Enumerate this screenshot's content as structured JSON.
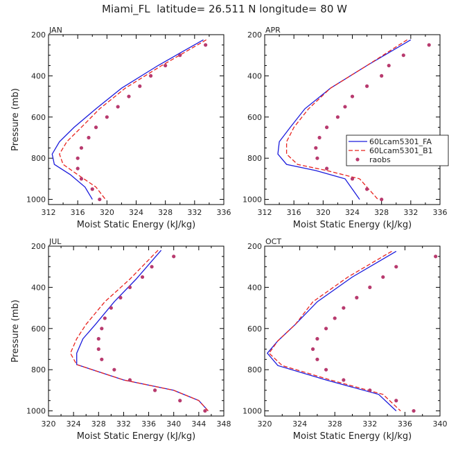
{
  "title": "Miami_FL  latitude= 26.511 N longitude= 80 W",
  "colors": {
    "model_fa": "#1a1adc",
    "model_b": "#e8231e",
    "raobs": "#b83a6e"
  },
  "legend": {
    "entries": [
      "60Lcam5301_FA",
      "60Lcam5301_B1",
      "raobs"
    ]
  },
  "chart_data": [
    {
      "type": "line",
      "panel": "JAN",
      "xlabel": "Moist Static Energy (kJ/kg)",
      "ylabel": "Pressure (mb)",
      "xlim": [
        312,
        336
      ],
      "ylim": [
        200,
        1025
      ],
      "xticks": [
        312,
        316,
        320,
        324,
        328,
        332,
        336
      ],
      "yticks": [
        200,
        400,
        600,
        800,
        1000
      ],
      "series": [
        {
          "name": "60Lcam5301_FA",
          "style": "solid",
          "points": [
            [
              333.2,
              225
            ],
            [
              327,
              350
            ],
            [
              322,
              460
            ],
            [
              318.5,
              560
            ],
            [
              315.5,
              650
            ],
            [
              313.5,
              720
            ],
            [
              312.5,
              780
            ],
            [
              312.8,
              830
            ],
            [
              315,
              880
            ],
            [
              317,
              940
            ],
            [
              318,
              1000
            ]
          ]
        },
        {
          "name": "60Lcam5301_B1",
          "style": "dashed",
          "points": [
            [
              333.6,
              225
            ],
            [
              327.5,
              350
            ],
            [
              322.5,
              460
            ],
            [
              319,
              560
            ],
            [
              316.5,
              650
            ],
            [
              314.5,
              720
            ],
            [
              313.5,
              780
            ],
            [
              314,
              830
            ],
            [
              316,
              880
            ],
            [
              318.5,
              940
            ],
            [
              319.8,
              1000
            ]
          ]
        },
        {
          "name": "raobs",
          "style": "dots",
          "points": [
            [
              333.5,
              250
            ],
            [
              330,
              300
            ],
            [
              328,
              350
            ],
            [
              326,
              400
            ],
            [
              324.5,
              450
            ],
            [
              323,
              500
            ],
            [
              321.5,
              550
            ],
            [
              320,
              600
            ],
            [
              318.5,
              650
            ],
            [
              317.5,
              700
            ],
            [
              316.5,
              750
            ],
            [
              316,
              800
            ],
            [
              316,
              850
            ],
            [
              316.5,
              900
            ],
            [
              318,
              950
            ],
            [
              319,
              1000
            ]
          ]
        }
      ]
    },
    {
      "type": "line",
      "panel": "APR",
      "xlabel": "Moist Static Energy (kJ/kg)",
      "ylabel": "",
      "xlim": [
        312,
        336
      ],
      "ylim": [
        200,
        1025
      ],
      "xticks": [
        312,
        316,
        320,
        324,
        328,
        332,
        336
      ],
      "yticks": [
        200,
        400,
        600,
        800,
        1000
      ],
      "legend_position": "right",
      "series": [
        {
          "name": "60Lcam5301_FA",
          "style": "solid",
          "points": [
            [
              332,
              225
            ],
            [
              326,
              350
            ],
            [
              321,
              460
            ],
            [
              317.5,
              560
            ],
            [
              315.5,
              650
            ],
            [
              314,
              720
            ],
            [
              313.8,
              780
            ],
            [
              315,
              830
            ],
            [
              319,
              860
            ],
            [
              323,
              900
            ],
            [
              325,
              1000
            ]
          ]
        },
        {
          "name": "60Lcam5301_B1",
          "style": "dashed",
          "points": [
            [
              331.5,
              225
            ],
            [
              326,
              350
            ],
            [
              321,
              460
            ],
            [
              318,
              560
            ],
            [
              316,
              650
            ],
            [
              315,
              720
            ],
            [
              315,
              780
            ],
            [
              316.5,
              830
            ],
            [
              320.5,
              860
            ],
            [
              325,
              900
            ],
            [
              327.5,
              1000
            ]
          ]
        },
        {
          "name": "raobs",
          "style": "dots",
          "points": [
            [
              334.5,
              250
            ],
            [
              331,
              300
            ],
            [
              329,
              350
            ],
            [
              328,
              400
            ],
            [
              326,
              450
            ],
            [
              324,
              500
            ],
            [
              323,
              550
            ],
            [
              322,
              600
            ],
            [
              320.5,
              650
            ],
            [
              319.5,
              700
            ],
            [
              319,
              750
            ],
            [
              319.2,
              800
            ],
            [
              320.5,
              850
            ],
            [
              324,
              900
            ],
            [
              326,
              950
            ],
            [
              328,
              1000
            ]
          ]
        }
      ]
    },
    {
      "type": "line",
      "panel": "JUL",
      "xlabel": "Moist Static Energy (kJ/kg)",
      "ylabel": "Pressure (mb)",
      "xlim": [
        320,
        348
      ],
      "ylim": [
        200,
        1025
      ],
      "xticks": [
        320,
        324,
        328,
        332,
        336,
        340,
        344,
        348
      ],
      "yticks": [
        200,
        400,
        600,
        800,
        1000
      ],
      "series": [
        {
          "name": "60Lcam5301_FA",
          "style": "solid",
          "points": [
            [
              338,
              220
            ],
            [
              334,
              360
            ],
            [
              330.5,
              470
            ],
            [
              327.5,
              580
            ],
            [
              325.5,
              650
            ],
            [
              324.5,
              720
            ],
            [
              324.5,
              775
            ],
            [
              332,
              850
            ],
            [
              340,
              900
            ],
            [
              344,
              950
            ],
            [
              345.5,
              1000
            ]
          ]
        },
        {
          "name": "60Lcam5301_B1",
          "style": "dashed",
          "points": [
            [
              337.5,
              220
            ],
            [
              333,
              360
            ],
            [
              329,
              470
            ],
            [
              326,
              580
            ],
            [
              324.5,
              650
            ],
            [
              323.5,
              720
            ],
            [
              324.5,
              775
            ],
            [
              332,
              850
            ],
            [
              340,
              900
            ],
            [
              344,
              950
            ],
            [
              345.5,
              1000
            ]
          ]
        },
        {
          "name": "raobs",
          "style": "dots",
          "points": [
            [
              340,
              250
            ],
            [
              336.5,
              300
            ],
            [
              335,
              350
            ],
            [
              333,
              400
            ],
            [
              331.5,
              450
            ],
            [
              330,
              500
            ],
            [
              329,
              550
            ],
            [
              328.5,
              600
            ],
            [
              328,
              650
            ],
            [
              328,
              700
            ],
            [
              328.5,
              750
            ],
            [
              330.5,
              800
            ],
            [
              333,
              850
            ],
            [
              337,
              900
            ],
            [
              341,
              950
            ],
            [
              345,
              1000
            ]
          ]
        }
      ]
    },
    {
      "type": "line",
      "panel": "OCT",
      "xlabel": "Moist Static Energy (kJ/kg)",
      "ylabel": "",
      "xlim": [
        320,
        340
      ],
      "ylim": [
        200,
        1025
      ],
      "xticks": [
        320,
        324,
        328,
        332,
        336,
        340
      ],
      "yticks": [
        200,
        400,
        600,
        800,
        1000
      ],
      "series": [
        {
          "name": "60Lcam5301_FA",
          "style": "solid",
          "points": [
            [
              335,
              225
            ],
            [
              330,
              350
            ],
            [
              326,
              470
            ],
            [
              323.5,
              580
            ],
            [
              321.5,
              660
            ],
            [
              320.3,
              720
            ],
            [
              321.5,
              780
            ],
            [
              327,
              850
            ],
            [
              333,
              920
            ],
            [
              335,
              1000
            ]
          ]
        },
        {
          "name": "60Lcam5301_B1",
          "style": "dashed",
          "points": [
            [
              334.5,
              225
            ],
            [
              329.5,
              350
            ],
            [
              325.5,
              470
            ],
            [
              323.5,
              580
            ],
            [
              321.5,
              660
            ],
            [
              320.5,
              720
            ],
            [
              322,
              780
            ],
            [
              327.5,
              850
            ],
            [
              333.5,
              920
            ],
            [
              335.5,
              1000
            ]
          ]
        },
        {
          "name": "raobs",
          "style": "dots",
          "points": [
            [
              339.5,
              250
            ],
            [
              335,
              300
            ],
            [
              333.5,
              350
            ],
            [
              332,
              400
            ],
            [
              330.5,
              450
            ],
            [
              329,
              500
            ],
            [
              328,
              550
            ],
            [
              327,
              600
            ],
            [
              326,
              650
            ],
            [
              325.5,
              700
            ],
            [
              326,
              750
            ],
            [
              327,
              800
            ],
            [
              329,
              850
            ],
            [
              332,
              900
            ],
            [
              335,
              950
            ],
            [
              337,
              1000
            ]
          ]
        }
      ]
    }
  ]
}
